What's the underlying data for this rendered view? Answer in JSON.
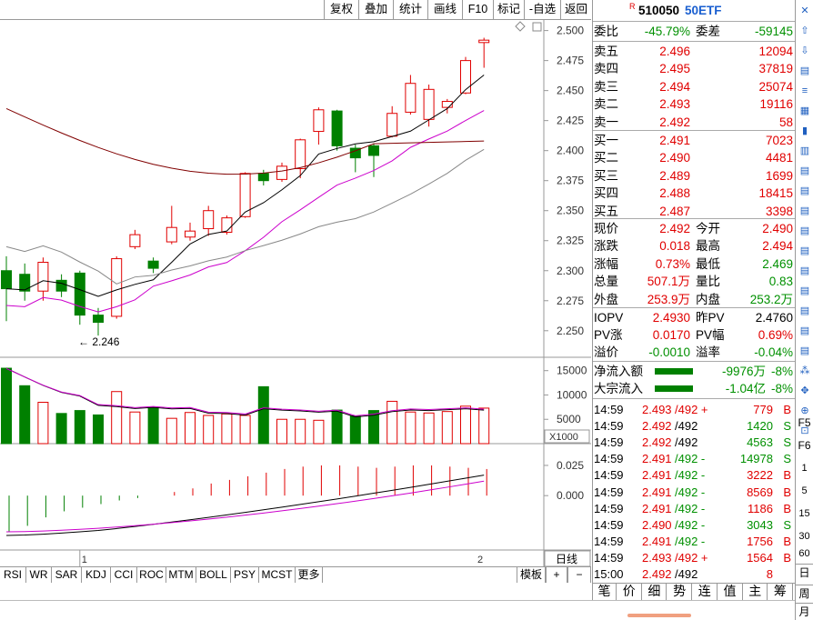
{
  "toolbar_top": [
    "复权",
    "叠加",
    "统计",
    "画线",
    "F10",
    "标记",
    "-自选",
    "返回"
  ],
  "security": {
    "flag": "R",
    "code": "510050",
    "name": "50ETF"
  },
  "ratio": {
    "label1": "委比",
    "val1": "-45.79%",
    "label2": "委差",
    "val2": "-59145"
  },
  "asks": [
    {
      "label": "卖五",
      "price": "2.496",
      "vol": "12094"
    },
    {
      "label": "卖四",
      "price": "2.495",
      "vol": "37819"
    },
    {
      "label": "卖三",
      "price": "2.494",
      "vol": "25074"
    },
    {
      "label": "卖二",
      "price": "2.493",
      "vol": "19116"
    },
    {
      "label": "卖一",
      "price": "2.492",
      "vol": "58"
    }
  ],
  "bids": [
    {
      "label": "买一",
      "price": "2.491",
      "vol": "7023"
    },
    {
      "label": "买二",
      "price": "2.490",
      "vol": "4481"
    },
    {
      "label": "买三",
      "price": "2.489",
      "vol": "1699"
    },
    {
      "label": "买四",
      "price": "2.488",
      "vol": "18415"
    },
    {
      "label": "买五",
      "price": "2.487",
      "vol": "3398"
    }
  ],
  "quote": [
    {
      "l1": "现价",
      "v1": "2.492",
      "c1": "red",
      "l2": "今开",
      "v2": "2.490",
      "c2": "red"
    },
    {
      "l1": "涨跌",
      "v1": "0.018",
      "c1": "red",
      "l2": "最高",
      "v2": "2.494",
      "c2": "red"
    },
    {
      "l1": "涨幅",
      "v1": "0.73%",
      "c1": "red",
      "l2": "最低",
      "v2": "2.469",
      "c2": "green"
    },
    {
      "l1": "总量",
      "v1": "507.1万",
      "c1": "red",
      "l2": "量比",
      "v2": "0.83",
      "c2": "green"
    },
    {
      "l1": "外盘",
      "v1": "253.9万",
      "c1": "red",
      "l2": "内盘",
      "v2": "253.2万",
      "c2": "green"
    }
  ],
  "iopv": [
    {
      "l1": "IOPV",
      "v1": "2.4930",
      "c1": "red",
      "l2": "昨PV",
      "v2": "2.4760",
      "c2": "blk"
    },
    {
      "l1": "PV涨",
      "v1": "0.0170",
      "c1": "red",
      "l2": "PV幅",
      "v2": "0.69%",
      "c2": "red"
    },
    {
      "l1": "溢价",
      "v1": "-0.0010",
      "c1": "green",
      "l2": "溢率",
      "v2": "-0.04%",
      "c2": "green"
    }
  ],
  "flows": [
    {
      "label": "净流入额",
      "val": "-9976万",
      "pct": "-8%"
    },
    {
      "label": "大宗流入",
      "val": "-1.04亿",
      "pct": "-8%"
    }
  ],
  "ticks": [
    {
      "t": "14:59",
      "p": "2.493",
      "s": "/492 +",
      "v": "779",
      "bs": "B",
      "pc": "red",
      "vc": "red"
    },
    {
      "t": "14:59",
      "p": "2.492",
      "s": "/492",
      "v": "1420",
      "bs": "S",
      "pc": "red",
      "vc": "green"
    },
    {
      "t": "14:59",
      "p": "2.492",
      "s": "/492",
      "v": "4563",
      "bs": "S",
      "pc": "red",
      "vc": "green"
    },
    {
      "t": "14:59",
      "p": "2.491",
      "s": "/492 -",
      "v": "14978",
      "bs": "S",
      "pc": "red",
      "vc": "green"
    },
    {
      "t": "14:59",
      "p": "2.491",
      "s": "/492 -",
      "v": "3222",
      "bs": "B",
      "pc": "red",
      "vc": "red"
    },
    {
      "t": "14:59",
      "p": "2.491",
      "s": "/492 -",
      "v": "8569",
      "bs": "B",
      "pc": "red",
      "vc": "red"
    },
    {
      "t": "14:59",
      "p": "2.491",
      "s": "/492 -",
      "v": "1186",
      "bs": "B",
      "pc": "red",
      "vc": "red"
    },
    {
      "t": "14:59",
      "p": "2.490",
      "s": "/492 -",
      "v": "3043",
      "bs": "S",
      "pc": "red",
      "vc": "green"
    },
    {
      "t": "14:59",
      "p": "2.491",
      "s": "/492 -",
      "v": "1756",
      "bs": "B",
      "pc": "red",
      "vc": "red"
    },
    {
      "t": "14:59",
      "p": "2.493",
      "s": "/492 +",
      "v": "1564",
      "bs": "B",
      "pc": "red",
      "vc": "red"
    },
    {
      "t": "15:00",
      "p": "2.492",
      "s": "/492",
      "v": "8",
      "bs": "",
      "pc": "red",
      "vc": "red"
    }
  ],
  "panel_tabs": [
    "笔",
    "价",
    "细",
    "势",
    "连",
    "值",
    "主",
    "筹"
  ],
  "indicator_tabs": [
    "RSI",
    "WR",
    "SAR",
    "KDJ",
    "CCI",
    "ROC",
    "MTM",
    "BOLL",
    "PSY",
    "MCST",
    "更多"
  ],
  "indicator_right": [
    "模板",
    "+",
    "−"
  ],
  "period_label": "日线",
  "price_axis": [
    "2.500",
    "2.475",
    "2.450",
    "2.425",
    "2.400",
    "2.375",
    "2.350",
    "2.325",
    "2.300",
    "2.275",
    "2.250"
  ],
  "vol_axis": [
    "15000",
    "10000",
    "5000"
  ],
  "vol_unit": "X1000",
  "macd_axis": [
    "0.025",
    "0.000"
  ],
  "low_marker": "2.246",
  "date_marks": [
    "1",
    "2"
  ],
  "side_tools": [
    "F5",
    "F6",
    "1",
    "5",
    "15",
    "30",
    "60",
    "日",
    "周",
    "月"
  ],
  "chart_data": {
    "type": "candlestick",
    "ylim": [
      2.24,
      2.505
    ],
    "candles": [
      {
        "o": 2.3,
        "c": 2.285,
        "h": 2.312,
        "l": 2.258
      },
      {
        "o": 2.297,
        "c": 2.283,
        "h": 2.306,
        "l": 2.275
      },
      {
        "o": 2.283,
        "c": 2.307,
        "h": 2.311,
        "l": 2.275
      },
      {
        "o": 2.292,
        "c": 2.283,
        "h": 2.297,
        "l": 2.278
      },
      {
        "o": 2.298,
        "c": 2.263,
        "h": 2.3,
        "l": 2.255
      },
      {
        "o": 2.263,
        "c": 2.257,
        "h": 2.269,
        "l": 2.246
      },
      {
        "o": 2.262,
        "c": 2.31,
        "h": 2.312,
        "l": 2.26
      },
      {
        "o": 2.32,
        "c": 2.33,
        "h": 2.334,
        "l": 2.318
      },
      {
        "o": 2.308,
        "c": 2.302,
        "h": 2.311,
        "l": 2.298
      },
      {
        "o": 2.324,
        "c": 2.336,
        "h": 2.354,
        "l": 2.322
      },
      {
        "o": 2.328,
        "c": 2.333,
        "h": 2.34,
        "l": 2.325
      },
      {
        "o": 2.335,
        "c": 2.35,
        "h": 2.354,
        "l": 2.329
      },
      {
        "o": 2.332,
        "c": 2.344,
        "h": 2.346,
        "l": 2.33
      },
      {
        "o": 2.345,
        "c": 2.381,
        "h": 2.382,
        "l": 2.344
      },
      {
        "o": 2.381,
        "c": 2.375,
        "h": 2.384,
        "l": 2.371
      },
      {
        "o": 2.376,
        "c": 2.387,
        "h": 2.39,
        "l": 2.374
      },
      {
        "o": 2.385,
        "c": 2.409,
        "h": 2.41,
        "l": 2.377
      },
      {
        "o": 2.416,
        "c": 2.434,
        "h": 2.436,
        "l": 2.405
      },
      {
        "o": 2.433,
        "c": 2.404,
        "h": 2.434,
        "l": 2.4
      },
      {
        "o": 2.402,
        "c": 2.394,
        "h": 2.405,
        "l": 2.382
      },
      {
        "o": 2.404,
        "c": 2.396,
        "h": 2.406,
        "l": 2.378
      },
      {
        "o": 2.412,
        "c": 2.431,
        "h": 2.437,
        "l": 2.411
      },
      {
        "o": 2.432,
        "c": 2.456,
        "h": 2.463,
        "l": 2.43
      },
      {
        "o": 2.426,
        "c": 2.451,
        "h": 2.455,
        "l": 2.42
      },
      {
        "o": 2.436,
        "c": 2.441,
        "h": 2.443,
        "l": 2.431
      },
      {
        "o": 2.448,
        "c": 2.475,
        "h": 2.478,
        "l": 2.447
      },
      {
        "o": 2.49,
        "c": 2.492,
        "h": 2.494,
        "l": 2.469
      }
    ],
    "volumes": [
      15500,
      11900,
      8500,
      6200,
      6800,
      5900,
      10700,
      6500,
      7400,
      5200,
      6400,
      5800,
      6100,
      5800,
      11700,
      5000,
      5000,
      4800,
      6900,
      5700,
      6800,
      8700,
      6500,
      6300,
      6600,
      7700,
      7300
    ],
    "vol_ylim": [
      0,
      17000
    ],
    "macd_bars": [
      -0.03,
      -0.025,
      -0.018,
      -0.013,
      -0.01,
      -0.007,
      -0.004,
      -0.002,
      0.0,
      0.003,
      0.006,
      0.01,
      0.013,
      0.016,
      0.019,
      0.022,
      0.024,
      0.025,
      0.025,
      0.024,
      0.023,
      0.024,
      0.025,
      0.025,
      0.024,
      0.023,
      0.022
    ],
    "macd_ylim": [
      -0.045,
      0.04
    ]
  }
}
